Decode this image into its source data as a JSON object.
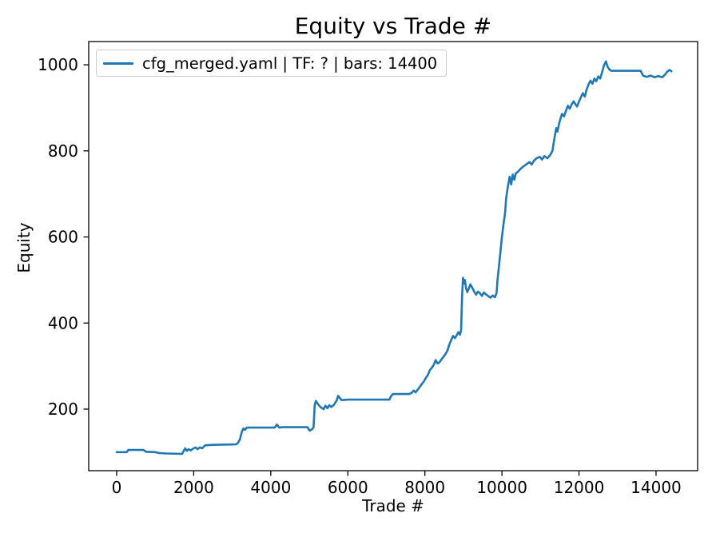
{
  "chart_data": {
    "type": "line",
    "title": "Equity vs Trade #",
    "xlabel": "Trade #",
    "ylabel": "Equity",
    "x_ticks": [
      0,
      2000,
      4000,
      6000,
      8000,
      10000,
      12000,
      14000
    ],
    "y_ticks": [
      200,
      400,
      600,
      800,
      1000
    ],
    "xlim": [
      -726,
      15079
    ],
    "ylim": [
      57,
      1054
    ],
    "grid": false,
    "legend": {
      "position": "upper-left",
      "frame": true
    },
    "series": [
      {
        "name": "cfg_merged.yaml | TF: ? | bars: 14400",
        "color": "#1f77b4",
        "points": [
          [
            0,
            100
          ],
          [
            260,
            100
          ],
          [
            300,
            105
          ],
          [
            700,
            105
          ],
          [
            760,
            101
          ],
          [
            1000,
            100
          ],
          [
            1100,
            98
          ],
          [
            1300,
            97
          ],
          [
            1700,
            96
          ],
          [
            1740,
            103
          ],
          [
            1780,
            109
          ],
          [
            1820,
            103
          ],
          [
            1870,
            107
          ],
          [
            1920,
            104
          ],
          [
            1980,
            108
          ],
          [
            2050,
            111
          ],
          [
            2100,
            107
          ],
          [
            2160,
            111
          ],
          [
            2220,
            109
          ],
          [
            2300,
            116
          ],
          [
            2500,
            117
          ],
          [
            3100,
            118
          ],
          [
            3150,
            122
          ],
          [
            3200,
            130
          ],
          [
            3250,
            148
          ],
          [
            3290,
            155
          ],
          [
            3330,
            152
          ],
          [
            3380,
            157
          ],
          [
            4100,
            157
          ],
          [
            4160,
            164
          ],
          [
            4220,
            157
          ],
          [
            4300,
            158
          ],
          [
            4950,
            158
          ],
          [
            5010,
            150
          ],
          [
            5070,
            153
          ],
          [
            5110,
            158
          ],
          [
            5140,
            210
          ],
          [
            5170,
            219
          ],
          [
            5220,
            212
          ],
          [
            5290,
            205
          ],
          [
            5370,
            200
          ],
          [
            5420,
            208
          ],
          [
            5470,
            202
          ],
          [
            5520,
            209
          ],
          [
            5570,
            205
          ],
          [
            5640,
            210
          ],
          [
            5710,
            220
          ],
          [
            5750,
            231
          ],
          [
            5790,
            226
          ],
          [
            5840,
            221
          ],
          [
            6000,
            222
          ],
          [
            7080,
            222
          ],
          [
            7120,
            230
          ],
          [
            7170,
            235
          ],
          [
            7580,
            235
          ],
          [
            7650,
            237
          ],
          [
            7710,
            243
          ],
          [
            7760,
            239
          ],
          [
            7820,
            246
          ],
          [
            7870,
            252
          ],
          [
            7920,
            258
          ],
          [
            7970,
            264
          ],
          [
            8020,
            272
          ],
          [
            8080,
            280
          ],
          [
            8130,
            291
          ],
          [
            8180,
            296
          ],
          [
            8230,
            303
          ],
          [
            8280,
            314
          ],
          [
            8330,
            306
          ],
          [
            8380,
            309
          ],
          [
            8450,
            318
          ],
          [
            8520,
            326
          ],
          [
            8580,
            335
          ],
          [
            8630,
            349
          ],
          [
            8680,
            360
          ],
          [
            8730,
            370
          ],
          [
            8780,
            365
          ],
          [
            8830,
            372
          ],
          [
            8870,
            379
          ],
          [
            8910,
            373
          ],
          [
            8940,
            383
          ],
          [
            8965,
            460
          ],
          [
            8990,
            505
          ],
          [
            9015,
            492
          ],
          [
            9040,
            500
          ],
          [
            9070,
            480
          ],
          [
            9100,
            472
          ],
          [
            9140,
            480
          ],
          [
            9180,
            490
          ],
          [
            9230,
            482
          ],
          [
            9280,
            473
          ],
          [
            9330,
            466
          ],
          [
            9380,
            473
          ],
          [
            9430,
            469
          ],
          [
            9480,
            463
          ],
          [
            9530,
            471
          ],
          [
            9580,
            467
          ],
          [
            9640,
            463
          ],
          [
            9700,
            459
          ],
          [
            9760,
            464
          ],
          [
            9820,
            460
          ],
          [
            9860,
            470
          ],
          [
            9885,
            500
          ],
          [
            9920,
            530
          ],
          [
            9960,
            565
          ],
          [
            10000,
            600
          ],
          [
            10040,
            630
          ],
          [
            10080,
            655
          ],
          [
            10110,
            690
          ],
          [
            10150,
            715
          ],
          [
            10200,
            740
          ],
          [
            10240,
            722
          ],
          [
            10280,
            745
          ],
          [
            10320,
            733
          ],
          [
            10360,
            748
          ],
          [
            10420,
            752
          ],
          [
            10480,
            758
          ],
          [
            10560,
            764
          ],
          [
            10650,
            770
          ],
          [
            10720,
            774
          ],
          [
            10770,
            768
          ],
          [
            10830,
            777
          ],
          [
            10900,
            783
          ],
          [
            10980,
            786
          ],
          [
            11040,
            780
          ],
          [
            11100,
            788
          ],
          [
            11180,
            783
          ],
          [
            11250,
            790
          ],
          [
            11310,
            800
          ],
          [
            11360,
            828
          ],
          [
            11410,
            853
          ],
          [
            11440,
            845
          ],
          [
            11480,
            862
          ],
          [
            11520,
            875
          ],
          [
            11560,
            886
          ],
          [
            11610,
            880
          ],
          [
            11660,
            893
          ],
          [
            11710,
            905
          ],
          [
            11760,
            898
          ],
          [
            11810,
            908
          ],
          [
            11860,
            915
          ],
          [
            11910,
            908
          ],
          [
            11950,
            903
          ],
          [
            12000,
            915
          ],
          [
            12050,
            925
          ],
          [
            12100,
            934
          ],
          [
            12150,
            926
          ],
          [
            12200,
            943
          ],
          [
            12250,
            955
          ],
          [
            12300,
            963
          ],
          [
            12350,
            956
          ],
          [
            12400,
            968
          ],
          [
            12450,
            962
          ],
          [
            12500,
            973
          ],
          [
            12550,
            968
          ],
          [
            12600,
            983
          ],
          [
            12650,
            999
          ],
          [
            12700,
            1008
          ],
          [
            12740,
            996
          ],
          [
            12790,
            989
          ],
          [
            12840,
            986
          ],
          [
            13600,
            986
          ],
          [
            13660,
            975
          ],
          [
            13760,
            972
          ],
          [
            13860,
            975
          ],
          [
            13960,
            971
          ],
          [
            14060,
            974
          ],
          [
            14160,
            971
          ],
          [
            14230,
            977
          ],
          [
            14290,
            984
          ],
          [
            14350,
            988
          ],
          [
            14400,
            985
          ]
        ]
      }
    ]
  },
  "colors": {
    "line": "#1f77b4",
    "spine": "#000000",
    "background": "#ffffff",
    "legend_border": "#cccccc"
  }
}
